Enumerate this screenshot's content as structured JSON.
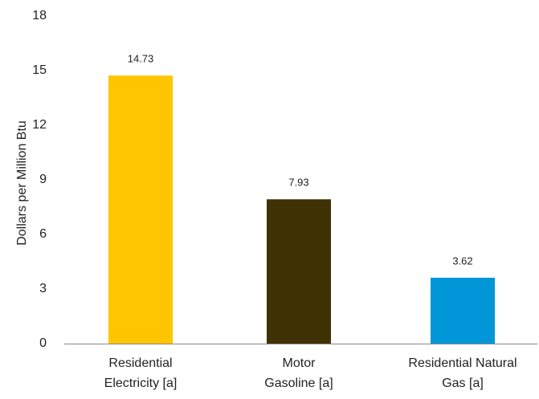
{
  "chart_data": {
    "type": "bar",
    "title": "",
    "xlabel": "",
    "ylabel": "Dollars per Million Btu",
    "ylim": [
      0,
      18
    ],
    "yticks": [
      0,
      3,
      6,
      9,
      12,
      15,
      18
    ],
    "grid": false,
    "categories": [
      [
        "Residential",
        "Electricity [a]"
      ],
      [
        "Motor",
        "Gasoline [a]"
      ],
      [
        "Residential Natural",
        "Gas [a]"
      ]
    ],
    "values": [
      14.73,
      7.93,
      3.62
    ],
    "data_labels": [
      "14.73",
      "7.93",
      "3.62"
    ],
    "colors": [
      "#FFC600",
      "#3E3205",
      "#0096D7"
    ]
  }
}
